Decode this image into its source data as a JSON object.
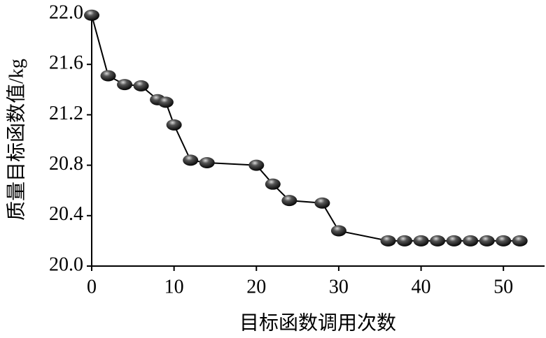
{
  "chart_data": {
    "type": "line",
    "x_label": "目标函数调用次数",
    "y_label": "质量目标函数值/kg",
    "x": [
      0,
      2,
      4,
      6,
      8,
      9,
      10,
      12,
      14,
      20,
      22,
      24,
      28,
      30,
      36,
      38,
      40,
      42,
      44,
      46,
      48,
      50,
      52
    ],
    "series": [
      {
        "color": "#000000",
        "values": [
          21.99,
          21.51,
          21.44,
          21.43,
          21.32,
          21.3,
          21.12,
          20.84,
          20.82,
          20.8,
          20.65,
          20.52,
          20.5,
          20.28,
          20.2,
          20.2,
          20.2,
          20.2,
          20.2,
          20.2,
          20.2,
          20.2,
          20.2
        ]
      }
    ],
    "xlim": [
      0,
      55
    ],
    "ylim": [
      20.0,
      22.0
    ],
    "xticks": [
      0,
      10,
      20,
      30,
      40,
      50
    ],
    "yticks": [
      {
        "value": 20.0,
        "label": "20.0"
      },
      {
        "value": 20.4,
        "label": "20.4"
      },
      {
        "value": 20.8,
        "label": "20.8"
      },
      {
        "value": 21.2,
        "label": "21.2"
      },
      {
        "value": 21.6,
        "label": "21.6"
      },
      {
        "value": 22.0,
        "label": "22.0"
      }
    ]
  }
}
